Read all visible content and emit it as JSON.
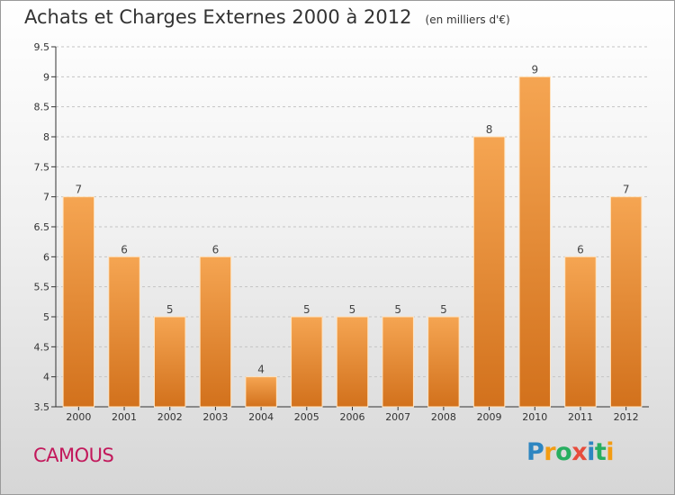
{
  "title": "Achats et Charges Externes 2000 à 2012",
  "subtitle": "(en milliers d'€)",
  "commune": "CAMOUS",
  "commune_color": "#c2185b",
  "logo": {
    "text": "Proxiti",
    "letters": [
      {
        "ch": "P",
        "color": "#2e86c1"
      },
      {
        "ch": "r",
        "color": "#f39c12"
      },
      {
        "ch": "o",
        "color": "#27ae60"
      },
      {
        "ch": "x",
        "color": "#e74c3c"
      },
      {
        "ch": "i",
        "color": "#2e86c1"
      },
      {
        "ch": "t",
        "color": "#27ae60"
      },
      {
        "ch": "i",
        "color": "#f39c12"
      }
    ]
  },
  "colors": {
    "bar_top": "#f5a552",
    "bar_bottom": "#d2711c",
    "bar_edge": "#ffe3bf",
    "grid": "#c4c4c4",
    "axis": "#333333"
  },
  "chart_data": {
    "type": "bar",
    "categories": [
      "2000",
      "2001",
      "2002",
      "2003",
      "2004",
      "2005",
      "2006",
      "2007",
      "2008",
      "2009",
      "2010",
      "2011",
      "2012"
    ],
    "values": [
      7,
      6,
      5,
      6,
      4,
      5,
      5,
      5,
      5,
      8,
      9,
      6,
      7
    ],
    "value_labels": [
      "7",
      "6",
      "5",
      "6",
      "4",
      "5",
      "5",
      "5",
      "5",
      "8",
      "9",
      "6",
      "7"
    ],
    "ylim": [
      3.5,
      9.5
    ],
    "yticks": [
      3.5,
      4,
      4.5,
      5,
      5.5,
      6,
      6.5,
      7,
      7.5,
      8,
      8.5,
      9,
      9.5
    ],
    "ytick_labels": [
      "3.5",
      "4",
      "4.5",
      "5",
      "5.5",
      "6",
      "6.5",
      "7",
      "7.5",
      "8",
      "8.5",
      "9",
      "9.5"
    ],
    "grid": true
  }
}
